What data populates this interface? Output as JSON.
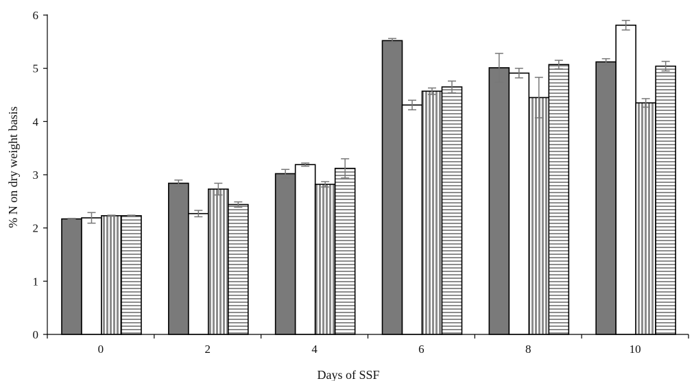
{
  "chart_data": {
    "type": "bar",
    "categories": [
      "0",
      "2",
      "4",
      "6",
      "8",
      "10"
    ],
    "series": [
      {
        "values": [
          2.17,
          2.84,
          3.02,
          5.52,
          5.01,
          5.12
        ],
        "errors": [
          0.01,
          0.06,
          0.08,
          0.04,
          0.27,
          0.06
        ],
        "fill": "solid",
        "color": "#7a7a7a"
      },
      {
        "values": [
          2.19,
          2.27,
          3.19,
          4.31,
          4.91,
          5.81
        ],
        "errors": [
          0.1,
          0.06,
          0.03,
          0.09,
          0.09,
          0.09
        ],
        "fill": "white",
        "color": "#ffffff"
      },
      {
        "values": [
          2.23,
          2.73,
          2.82,
          4.57,
          4.45,
          4.35
        ],
        "errors": [
          0.01,
          0.11,
          0.05,
          0.06,
          0.38,
          0.08
        ],
        "fill": "vertical-stripes",
        "color": "#8c8c8c"
      },
      {
        "values": [
          2.23,
          2.44,
          3.12,
          4.65,
          5.07,
          5.04
        ],
        "errors": [
          0.01,
          0.05,
          0.18,
          0.11,
          0.08,
          0.09
        ],
        "fill": "horizontal-stripes",
        "color": "#8c8c8c"
      }
    ],
    "title": "",
    "xlabel": "Days of SSF",
    "ylabel": "% N on dry weight basis",
    "ylim": [
      0,
      6
    ],
    "yticks": [
      "0",
      "1",
      "2",
      "3",
      "4",
      "5",
      "6"
    ],
    "grid": false,
    "legend": "none"
  }
}
